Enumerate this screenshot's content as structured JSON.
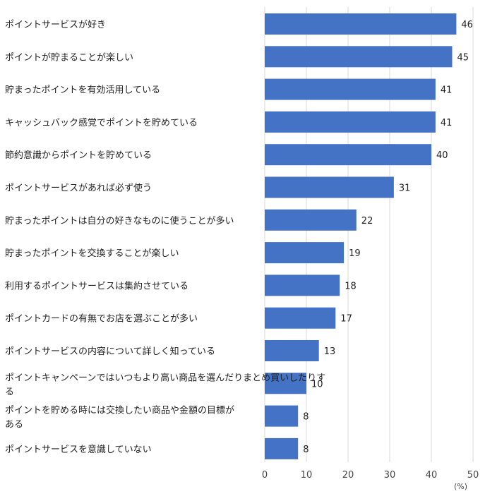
{
  "chart_data": {
    "type": "bar",
    "orientation": "horizontal",
    "categories": [
      "ポイントサービスが好き",
      "ポイントが貯まることが楽しい",
      "貯まったポイントを有効活用している",
      "キャッシュバック感覚でポイントを貯めている",
      "節約意識からポイントを貯めている",
      "ポイントサービスがあれば必ず使う",
      "貯まったポイントは自分の好きなものに使うことが多い",
      "貯まったポイントを交換することが楽しい",
      "利用するポイントサービスは集約させている",
      "ポイントカードの有無でお店を選ぶことが多い",
      "ポイントサービスの内容について詳しく知っている",
      "ポイントキャンペーンではいつもより高い商品を選んだりまとめ買いしたりする",
      "ポイントを貯める時には交換したい商品や金額の目標がある",
      "ポイントサービスを意識していない"
    ],
    "values": [
      46,
      45,
      41,
      41,
      40,
      31,
      22,
      19,
      18,
      17,
      13,
      10,
      8,
      8
    ],
    "value_labels": [
      "46",
      "45",
      "41",
      "41",
      "40",
      "31",
      "22",
      "19",
      "18",
      "17",
      "13",
      "10",
      "8",
      "8"
    ],
    "xticks": [
      "0",
      "10",
      "20",
      "30",
      "40",
      "50"
    ],
    "xlim": [
      0,
      50
    ],
    "unit": "(%)",
    "bar_color": "#4472C4",
    "grid": true
  }
}
